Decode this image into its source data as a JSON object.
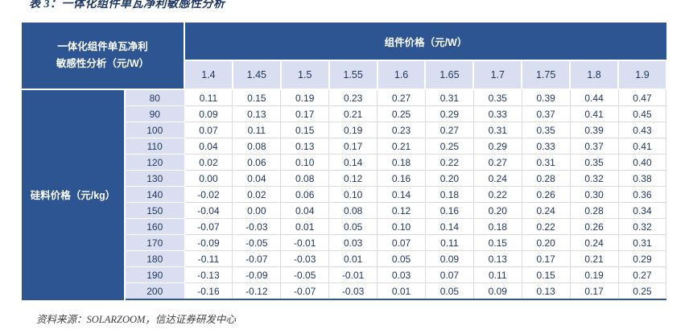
{
  "title": "表 3：一体化组件单瓦净利敏感性分析",
  "source": "资料来源：SOLARZOOM，信达证券研发中心",
  "colors": {
    "header_blue": "#2d5592",
    "subheader_lavender": "#d9def0",
    "data_text": "#21375f",
    "title_text": "#1f3864",
    "cell_border_gray": "#dcdcdc"
  },
  "chart_data": {
    "type": "table",
    "title": "表 3：一体化组件单瓦净利敏感性分析",
    "corner_label_line1": "一体化组件单瓦净利",
    "corner_label_line2": "敏感性分析（元/W）",
    "column_group_label": "组件价格（元/W）",
    "columns": [
      "1.4",
      "1.45",
      "1.5",
      "1.55",
      "1.6",
      "1.65",
      "1.7",
      "1.75",
      "1.8",
      "1.9"
    ],
    "row_group_label": "硅料价格（元/kg）",
    "rows": [
      {
        "silicon_price": "80",
        "values": [
          "0.11",
          "0.15",
          "0.19",
          "0.23",
          "0.27",
          "0.31",
          "0.35",
          "0.39",
          "0.44",
          "0.47"
        ]
      },
      {
        "silicon_price": "90",
        "values": [
          "0.09",
          "0.13",
          "0.17",
          "0.21",
          "0.25",
          "0.29",
          "0.33",
          "0.37",
          "0.41",
          "0.45"
        ]
      },
      {
        "silicon_price": "100",
        "values": [
          "0.07",
          "0.11",
          "0.15",
          "0.19",
          "0.23",
          "0.27",
          "0.31",
          "0.35",
          "0.39",
          "0.43"
        ]
      },
      {
        "silicon_price": "110",
        "values": [
          "0.04",
          "0.08",
          "0.13",
          "0.17",
          "0.21",
          "0.25",
          "0.29",
          "0.33",
          "0.37",
          "0.41"
        ]
      },
      {
        "silicon_price": "120",
        "values": [
          "0.02",
          "0.06",
          "0.10",
          "0.14",
          "0.18",
          "0.22",
          "0.27",
          "0.31",
          "0.35",
          "0.40"
        ]
      },
      {
        "silicon_price": "130",
        "values": [
          "0.00",
          "0.04",
          "0.08",
          "0.12",
          "0.16",
          "0.20",
          "0.24",
          "0.28",
          "0.32",
          "0.38"
        ]
      },
      {
        "silicon_price": "140",
        "values": [
          "-0.02",
          "0.02",
          "0.06",
          "0.10",
          "0.14",
          "0.18",
          "0.22",
          "0.26",
          "0.30",
          "0.36"
        ]
      },
      {
        "silicon_price": "150",
        "values": [
          "-0.04",
          "0.00",
          "0.04",
          "0.08",
          "0.12",
          "0.16",
          "0.20",
          "0.24",
          "0.28",
          "0.34"
        ]
      },
      {
        "silicon_price": "160",
        "values": [
          "-0.07",
          "-0.03",
          "0.01",
          "0.05",
          "0.10",
          "0.14",
          "0.18",
          "0.22",
          "0.26",
          "0.32"
        ]
      },
      {
        "silicon_price": "170",
        "values": [
          "-0.09",
          "-0.05",
          "-0.01",
          "0.03",
          "0.07",
          "0.11",
          "0.15",
          "0.20",
          "0.24",
          "0.31"
        ]
      },
      {
        "silicon_price": "180",
        "values": [
          "-0.11",
          "-0.07",
          "-0.03",
          "0.01",
          "0.05",
          "0.09",
          "0.13",
          "0.17",
          "0.21",
          "0.29"
        ]
      },
      {
        "silicon_price": "190",
        "values": [
          "-0.13",
          "-0.09",
          "-0.05",
          "-0.01",
          "0.03",
          "0.07",
          "0.11",
          "0.15",
          "0.19",
          "0.27"
        ]
      },
      {
        "silicon_price": "200",
        "values": [
          "-0.16",
          "-0.12",
          "-0.07",
          "-0.03",
          "0.01",
          "0.05",
          "0.09",
          "0.13",
          "0.17",
          "0.25"
        ]
      }
    ],
    "source": "资料来源：SOLARZOOM，信达证券研发中心"
  }
}
